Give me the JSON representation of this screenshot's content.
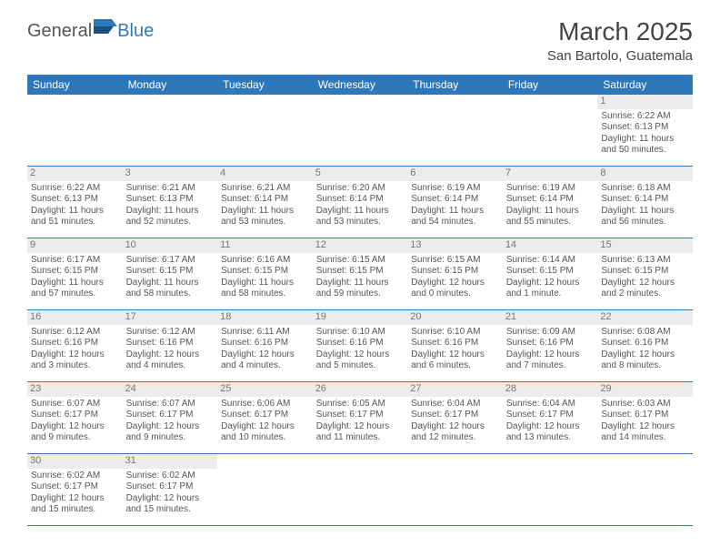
{
  "logo": {
    "part1": "General",
    "part2": "Blue"
  },
  "title": "March 2025",
  "location": "San Bartolo, Guatemala",
  "colors": {
    "header_bg": "#2d77bb",
    "header_text": "#ffffff",
    "row_border": "#2d77bb",
    "daynum_bg": "#ececec",
    "text": "#555555"
  },
  "daysOfWeek": [
    "Sunday",
    "Monday",
    "Tuesday",
    "Wednesday",
    "Thursday",
    "Friday",
    "Saturday"
  ],
  "weeks": [
    [
      null,
      null,
      null,
      null,
      null,
      null,
      {
        "n": "1",
        "sr": "6:22 AM",
        "ss": "6:13 PM",
        "dl": "11 hours and 50 minutes."
      }
    ],
    [
      {
        "n": "2",
        "sr": "6:22 AM",
        "ss": "6:13 PM",
        "dl": "11 hours and 51 minutes."
      },
      {
        "n": "3",
        "sr": "6:21 AM",
        "ss": "6:13 PM",
        "dl": "11 hours and 52 minutes."
      },
      {
        "n": "4",
        "sr": "6:21 AM",
        "ss": "6:14 PM",
        "dl": "11 hours and 53 minutes."
      },
      {
        "n": "5",
        "sr": "6:20 AM",
        "ss": "6:14 PM",
        "dl": "11 hours and 53 minutes."
      },
      {
        "n": "6",
        "sr": "6:19 AM",
        "ss": "6:14 PM",
        "dl": "11 hours and 54 minutes."
      },
      {
        "n": "7",
        "sr": "6:19 AM",
        "ss": "6:14 PM",
        "dl": "11 hours and 55 minutes."
      },
      {
        "n": "8",
        "sr": "6:18 AM",
        "ss": "6:14 PM",
        "dl": "11 hours and 56 minutes."
      }
    ],
    [
      {
        "n": "9",
        "sr": "6:17 AM",
        "ss": "6:15 PM",
        "dl": "11 hours and 57 minutes."
      },
      {
        "n": "10",
        "sr": "6:17 AM",
        "ss": "6:15 PM",
        "dl": "11 hours and 58 minutes."
      },
      {
        "n": "11",
        "sr": "6:16 AM",
        "ss": "6:15 PM",
        "dl": "11 hours and 58 minutes."
      },
      {
        "n": "12",
        "sr": "6:15 AM",
        "ss": "6:15 PM",
        "dl": "11 hours and 59 minutes."
      },
      {
        "n": "13",
        "sr": "6:15 AM",
        "ss": "6:15 PM",
        "dl": "12 hours and 0 minutes."
      },
      {
        "n": "14",
        "sr": "6:14 AM",
        "ss": "6:15 PM",
        "dl": "12 hours and 1 minute."
      },
      {
        "n": "15",
        "sr": "6:13 AM",
        "ss": "6:15 PM",
        "dl": "12 hours and 2 minutes."
      }
    ],
    [
      {
        "n": "16",
        "sr": "6:12 AM",
        "ss": "6:16 PM",
        "dl": "12 hours and 3 minutes."
      },
      {
        "n": "17",
        "sr": "6:12 AM",
        "ss": "6:16 PM",
        "dl": "12 hours and 4 minutes."
      },
      {
        "n": "18",
        "sr": "6:11 AM",
        "ss": "6:16 PM",
        "dl": "12 hours and 4 minutes."
      },
      {
        "n": "19",
        "sr": "6:10 AM",
        "ss": "6:16 PM",
        "dl": "12 hours and 5 minutes."
      },
      {
        "n": "20",
        "sr": "6:10 AM",
        "ss": "6:16 PM",
        "dl": "12 hours and 6 minutes."
      },
      {
        "n": "21",
        "sr": "6:09 AM",
        "ss": "6:16 PM",
        "dl": "12 hours and 7 minutes."
      },
      {
        "n": "22",
        "sr": "6:08 AM",
        "ss": "6:16 PM",
        "dl": "12 hours and 8 minutes."
      }
    ],
    [
      {
        "n": "23",
        "sr": "6:07 AM",
        "ss": "6:17 PM",
        "dl": "12 hours and 9 minutes."
      },
      {
        "n": "24",
        "sr": "6:07 AM",
        "ss": "6:17 PM",
        "dl": "12 hours and 9 minutes."
      },
      {
        "n": "25",
        "sr": "6:06 AM",
        "ss": "6:17 PM",
        "dl": "12 hours and 10 minutes."
      },
      {
        "n": "26",
        "sr": "6:05 AM",
        "ss": "6:17 PM",
        "dl": "12 hours and 11 minutes."
      },
      {
        "n": "27",
        "sr": "6:04 AM",
        "ss": "6:17 PM",
        "dl": "12 hours and 12 minutes."
      },
      {
        "n": "28",
        "sr": "6:04 AM",
        "ss": "6:17 PM",
        "dl": "12 hours and 13 minutes."
      },
      {
        "n": "29",
        "sr": "6:03 AM",
        "ss": "6:17 PM",
        "dl": "12 hours and 14 minutes."
      }
    ],
    [
      {
        "n": "30",
        "sr": "6:02 AM",
        "ss": "6:17 PM",
        "dl": "12 hours and 15 minutes."
      },
      {
        "n": "31",
        "sr": "6:02 AM",
        "ss": "6:17 PM",
        "dl": "12 hours and 15 minutes."
      },
      null,
      null,
      null,
      null,
      null
    ]
  ],
  "labels": {
    "sunrise": "Sunrise:",
    "sunset": "Sunset:",
    "daylight": "Daylight:"
  }
}
